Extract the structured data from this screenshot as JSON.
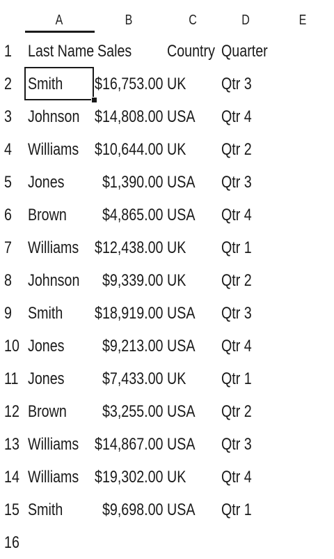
{
  "columns": [
    "A",
    "B",
    "C",
    "D",
    "E"
  ],
  "row_numbers": [
    "1",
    "2",
    "3",
    "4",
    "5",
    "6",
    "7",
    "8",
    "9",
    "10",
    "11",
    "12",
    "13",
    "14",
    "15",
    "16"
  ],
  "header": {
    "last_name": "Last Name",
    "sales": "Sales",
    "country": "Country",
    "quarter": "Quarter"
  },
  "rows": [
    {
      "last_name": "Smith",
      "sales": "$16,753.00",
      "country": "UK",
      "quarter": "Qtr 3"
    },
    {
      "last_name": "Johnson",
      "sales": "$14,808.00",
      "country": "USA",
      "quarter": "Qtr 4"
    },
    {
      "last_name": "Williams",
      "sales": "$10,644.00",
      "country": "UK",
      "quarter": "Qtr 2"
    },
    {
      "last_name": "Jones",
      "sales": "$1,390.00",
      "country": "USA",
      "quarter": "Qtr 3"
    },
    {
      "last_name": "Brown",
      "sales": "$4,865.00",
      "country": "USA",
      "quarter": "Qtr 4"
    },
    {
      "last_name": "Williams",
      "sales": "$12,438.00",
      "country": "UK",
      "quarter": "Qtr 1"
    },
    {
      "last_name": "Johnson",
      "sales": "$9,339.00",
      "country": "UK",
      "quarter": "Qtr 2"
    },
    {
      "last_name": "Smith",
      "sales": "$18,919.00",
      "country": "USA",
      "quarter": "Qtr 3"
    },
    {
      "last_name": "Jones",
      "sales": "$9,213.00",
      "country": "USA",
      "quarter": "Qtr 4"
    },
    {
      "last_name": "Jones",
      "sales": "$7,433.00",
      "country": "UK",
      "quarter": "Qtr 1"
    },
    {
      "last_name": "Brown",
      "sales": "$3,255.00",
      "country": "USA",
      "quarter": "Qtr 2"
    },
    {
      "last_name": "Williams",
      "sales": "$14,867.00",
      "country": "USA",
      "quarter": "Qtr 3"
    },
    {
      "last_name": "Williams",
      "sales": "$19,302.00",
      "country": "UK",
      "quarter": "Qtr 4"
    },
    {
      "last_name": "Smith",
      "sales": "$9,698.00",
      "country": "USA",
      "quarter": "Qtr 1"
    }
  ]
}
